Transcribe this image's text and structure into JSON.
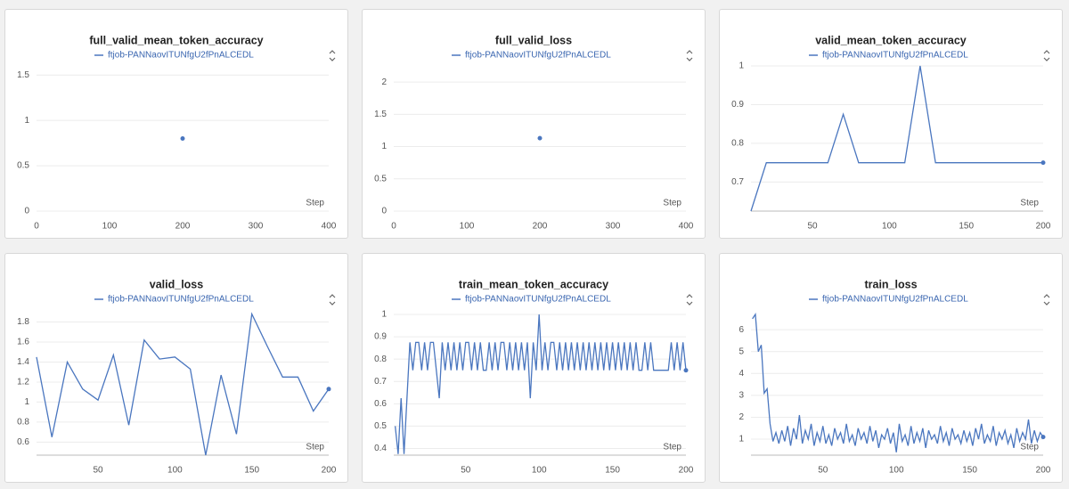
{
  "chart_data": [
    {
      "type": "line",
      "title": "full_valid_mean_token_accuracy",
      "xlabel": "Step",
      "xlim": [
        0,
        400
      ],
      "xticks": [
        0,
        100,
        200,
        300,
        400
      ],
      "ylim": [
        0,
        1.6
      ],
      "yticks": [
        0,
        0.5,
        1,
        1.5
      ],
      "grid": true,
      "series": [
        {
          "name": "ftjob-PANNaovITUNfgU2fPnALCEDL",
          "color": "#4a76bf",
          "x": [
            200
          ],
          "values": [
            0.8
          ]
        }
      ]
    },
    {
      "type": "line",
      "title": "full_valid_loss",
      "xlabel": "Step",
      "xlim": [
        0,
        400
      ],
      "xticks": [
        0,
        100,
        200,
        300,
        400
      ],
      "ylim": [
        0,
        2.25
      ],
      "yticks": [
        0,
        0.5,
        1,
        1.5,
        2
      ],
      "grid": true,
      "series": [
        {
          "name": "ftjob-PANNaovITUNfgU2fPnALCEDL",
          "color": "#4a76bf",
          "x": [
            200
          ],
          "values": [
            1.13
          ]
        }
      ]
    },
    {
      "type": "line",
      "title": "valid_mean_token_accuracy",
      "xlabel": "Step",
      "xlim": [
        10,
        200
      ],
      "xticks": [
        50,
        100,
        150,
        200
      ],
      "ylim": [
        0.625,
        1
      ],
      "yticks": [
        0.7,
        0.8,
        0.9,
        1
      ],
      "grid": true,
      "series": [
        {
          "name": "ftjob-PANNaovITUNfgU2fPnALCEDL",
          "color": "#4a76bf",
          "x": [
            10,
            20,
            30,
            40,
            50,
            60,
            70,
            80,
            90,
            100,
            110,
            120,
            130,
            140,
            150,
            160,
            170,
            180,
            190,
            200
          ],
          "values": [
            0.625,
            0.75,
            0.75,
            0.75,
            0.75,
            0.75,
            0.875,
            0.75,
            0.75,
            0.75,
            0.75,
            1,
            0.75,
            0.75,
            0.75,
            0.75,
            0.75,
            0.75,
            0.75,
            0.75
          ]
        }
      ]
    },
    {
      "type": "line",
      "title": "valid_loss",
      "xlabel": "Step",
      "xlim": [
        10,
        200
      ],
      "xticks": [
        50,
        100,
        150,
        200
      ],
      "ylim": [
        0.47,
        1.92
      ],
      "yticks": [
        0.6,
        0.8,
        1,
        1.2,
        1.4,
        1.6,
        1.8
      ],
      "grid": true,
      "series": [
        {
          "name": "ftjob-PANNaovITUNfgU2fPnALCEDL",
          "color": "#4a76bf",
          "x": [
            10,
            20,
            30,
            40,
            50,
            60,
            70,
            80,
            90,
            100,
            110,
            120,
            130,
            140,
            150,
            160,
            170,
            180,
            190,
            200
          ],
          "values": [
            1.45,
            0.65,
            1.4,
            1.13,
            1.02,
            1.47,
            0.77,
            1.62,
            1.43,
            1.45,
            1.33,
            0.47,
            1.27,
            0.68,
            1.88,
            1.56,
            1.25,
            1.25,
            0.91,
            1.13
          ]
        }
      ]
    },
    {
      "type": "line",
      "title": "train_mean_token_accuracy",
      "xlabel": "Step",
      "xlim": [
        1,
        200
      ],
      "xticks": [
        50,
        100,
        150,
        200
      ],
      "ylim": [
        0.37,
        1.02
      ],
      "yticks": [
        0.4,
        0.5,
        0.6,
        0.7,
        0.8,
        0.9,
        1
      ],
      "grid": true,
      "series": [
        {
          "name": "ftjob-PANNaovITUNfgU2fPnALCEDL",
          "color": "#4a76bf",
          "x": [
            2,
            4,
            6,
            8,
            10,
            12,
            14,
            16,
            18,
            20,
            22,
            24,
            26,
            28,
            30,
            32,
            34,
            36,
            38,
            40,
            42,
            44,
            46,
            48,
            50,
            52,
            54,
            56,
            58,
            60,
            62,
            64,
            66,
            68,
            70,
            72,
            74,
            76,
            78,
            80,
            82,
            84,
            86,
            88,
            90,
            92,
            94,
            96,
            98,
            100,
            102,
            104,
            106,
            108,
            110,
            112,
            114,
            116,
            118,
            120,
            122,
            124,
            126,
            128,
            130,
            132,
            134,
            136,
            138,
            140,
            142,
            144,
            146,
            148,
            150,
            152,
            154,
            156,
            158,
            160,
            162,
            164,
            166,
            168,
            170,
            172,
            174,
            176,
            178,
            180,
            182,
            184,
            186,
            188,
            190,
            192,
            194,
            196,
            198,
            200
          ],
          "values": [
            0.5,
            0.375,
            0.625,
            0.375,
            0.625,
            0.875,
            0.75,
            0.875,
            0.875,
            0.75,
            0.875,
            0.75,
            0.875,
            0.875,
            0.75,
            0.625,
            0.875,
            0.75,
            0.875,
            0.75,
            0.875,
            0.75,
            0.875,
            0.75,
            0.875,
            0.875,
            0.75,
            0.875,
            0.75,
            0.875,
            0.75,
            0.75,
            0.875,
            0.75,
            0.875,
            0.75,
            0.875,
            0.875,
            0.75,
            0.875,
            0.75,
            0.875,
            0.75,
            0.875,
            0.75,
            0.875,
            0.625,
            0.875,
            0.75,
            1,
            0.75,
            0.875,
            0.75,
            0.875,
            0.875,
            0.75,
            0.875,
            0.75,
            0.875,
            0.75,
            0.875,
            0.75,
            0.875,
            0.75,
            0.875,
            0.75,
            0.875,
            0.75,
            0.875,
            0.75,
            0.875,
            0.75,
            0.875,
            0.75,
            0.875,
            0.75,
            0.875,
            0.75,
            0.875,
            0.75,
            0.875,
            0.75,
            0.875,
            0.75,
            0.75,
            0.875,
            0.75,
            0.875,
            0.75,
            0.75,
            0.75,
            0.75,
            0.75,
            0.75,
            0.875,
            0.75,
            0.875,
            0.75,
            0.875,
            0.75
          ]
        }
      ]
    },
    {
      "type": "line",
      "title": "train_loss",
      "xlabel": "Step",
      "xlim": [
        1,
        200
      ],
      "xticks": [
        50,
        100,
        150,
        200
      ],
      "ylim": [
        0.27,
        6.9
      ],
      "yticks": [
        1,
        2,
        3,
        4,
        5,
        6
      ],
      "grid": true,
      "series": [
        {
          "name": "ftjob-PANNaovITUNfgU2fPnALCEDL",
          "color": "#4a76bf",
          "x": [
            2,
            4,
            6,
            8,
            10,
            12,
            14,
            16,
            18,
            20,
            22,
            24,
            26,
            28,
            30,
            32,
            34,
            36,
            38,
            40,
            42,
            44,
            46,
            48,
            50,
            52,
            54,
            56,
            58,
            60,
            62,
            64,
            66,
            68,
            70,
            72,
            74,
            76,
            78,
            80,
            82,
            84,
            86,
            88,
            90,
            92,
            94,
            96,
            98,
            100,
            102,
            104,
            106,
            108,
            110,
            112,
            114,
            116,
            118,
            120,
            122,
            124,
            126,
            128,
            130,
            132,
            134,
            136,
            138,
            140,
            142,
            144,
            146,
            148,
            150,
            152,
            154,
            156,
            158,
            160,
            162,
            164,
            166,
            168,
            170,
            172,
            174,
            176,
            178,
            180,
            182,
            184,
            186,
            188,
            190,
            192,
            194,
            196,
            198,
            200
          ],
          "values": [
            6.5,
            6.7,
            5.0,
            5.3,
            3.1,
            3.3,
            1.7,
            0.9,
            1.3,
            0.8,
            1.4,
            0.9,
            1.6,
            0.7,
            1.5,
            1.0,
            2.1,
            0.8,
            1.4,
            1.0,
            1.7,
            0.7,
            1.3,
            0.9,
            1.6,
            0.8,
            1.2,
            0.7,
            1.5,
            1.0,
            1.3,
            0.8,
            1.7,
            0.9,
            1.2,
            0.7,
            1.5,
            1.0,
            1.3,
            0.8,
            1.6,
            0.9,
            1.4,
            0.6,
            1.2,
            1.0,
            1.5,
            0.8,
            1.3,
            0.4,
            1.7,
            0.9,
            1.2,
            0.7,
            1.6,
            0.8,
            1.3,
            0.9,
            1.5,
            0.6,
            1.4,
            1.0,
            1.2,
            0.8,
            1.6,
            0.9,
            1.3,
            0.7,
            1.5,
            1.0,
            1.2,
            0.8,
            1.4,
            0.9,
            1.3,
            0.7,
            1.5,
            1.0,
            1.7,
            0.8,
            1.2,
            0.9,
            1.6,
            0.7,
            1.3,
            1.0,
            1.4,
            0.8,
            1.2,
            0.6,
            1.5,
            0.9,
            1.3,
            1.0,
            1.9,
            0.8,
            1.4,
            0.9,
            1.3,
            1.1
          ]
        }
      ]
    }
  ]
}
